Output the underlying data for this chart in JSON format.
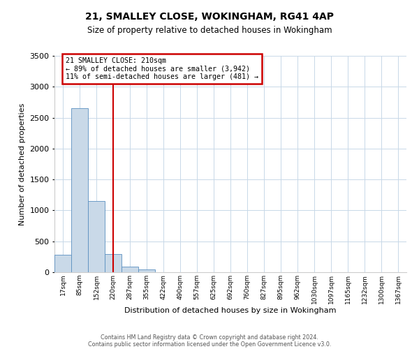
{
  "title1": "21, SMALLEY CLOSE, WOKINGHAM, RG41 4AP",
  "title2": "Size of property relative to detached houses in Wokingham",
  "xlabel": "Distribution of detached houses by size in Wokingham",
  "ylabel": "Number of detached properties",
  "bar_labels": [
    "17sqm",
    "85sqm",
    "152sqm",
    "220sqm",
    "287sqm",
    "355sqm",
    "422sqm",
    "490sqm",
    "557sqm",
    "625sqm",
    "692sqm",
    "760sqm",
    "827sqm",
    "895sqm",
    "962sqm",
    "1030sqm",
    "1097sqm",
    "1165sqm",
    "1232sqm",
    "1300sqm",
    "1367sqm"
  ],
  "bar_values": [
    280,
    2650,
    1150,
    290,
    85,
    40,
    5,
    0,
    0,
    0,
    0,
    0,
    0,
    0,
    0,
    0,
    0,
    0,
    0,
    0,
    0
  ],
  "bar_color": "#c9d9e8",
  "bar_edge_color": "#5a8fc0",
  "vline_x_index": 3,
  "vline_color": "#cc0000",
  "ylim": [
    0,
    3500
  ],
  "yticks": [
    0,
    500,
    1000,
    1500,
    2000,
    2500,
    3000,
    3500
  ],
  "annotation_text": "21 SMALLEY CLOSE: 210sqm\n← 89% of detached houses are smaller (3,942)\n11% of semi-detached houses are larger (481) →",
  "annotation_box_color": "#ffffff",
  "annotation_box_edge": "#cc0000",
  "footer1": "Contains HM Land Registry data © Crown copyright and database right 2024.",
  "footer2": "Contains public sector information licensed under the Open Government Licence v3.0.",
  "bg_color": "#ffffff",
  "grid_color": "#c8d8e8",
  "fig_width": 6.0,
  "fig_height": 5.0,
  "dpi": 100
}
